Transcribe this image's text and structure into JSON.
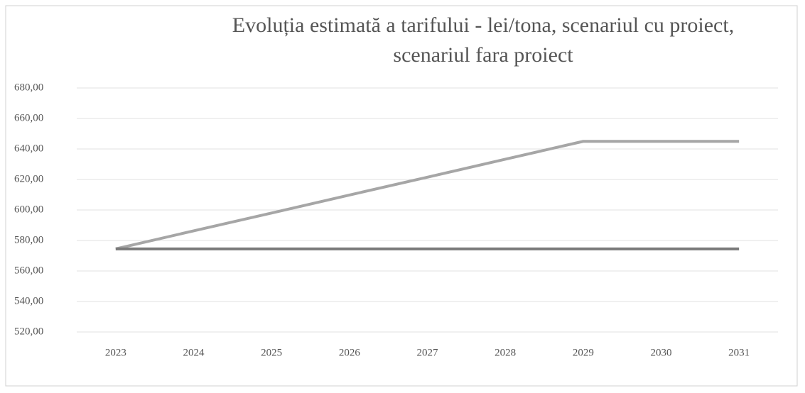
{
  "chart_data": {
    "type": "line",
    "title": [
      "Evoluția estimată a tarifului - lei/tona, scenariul cu proiect,",
      "scenariul fara proiect"
    ],
    "categories": [
      "2023",
      "2024",
      "2025",
      "2026",
      "2027",
      "2028",
      "2029",
      "2030",
      "2031"
    ],
    "series": [
      {
        "color": "#a6a6a6",
        "values": [
          574.5,
          586.3,
          598.0,
          609.8,
          621.5,
          633.3,
          645,
          645,
          645
        ]
      },
      {
        "color": "#7a7a7a",
        "values": [
          574.5,
          574.5,
          574.5,
          574.5,
          574.5,
          574.5,
          574.5,
          574.5,
          574.5
        ]
      }
    ],
    "ylim": [
      520,
      680
    ],
    "yticks": [
      {
        "value": 520,
        "label": "520,00"
      },
      {
        "value": 540,
        "label": "540,00"
      },
      {
        "value": 560,
        "label": "560,00"
      },
      {
        "value": 580,
        "label": "580,00"
      },
      {
        "value": 600,
        "label": "600,00"
      },
      {
        "value": 620,
        "label": "620,00"
      },
      {
        "value": 640,
        "label": "640,00"
      },
      {
        "value": 660,
        "label": "660,00"
      },
      {
        "value": 680,
        "label": "680,00"
      }
    ],
    "grid": true
  }
}
